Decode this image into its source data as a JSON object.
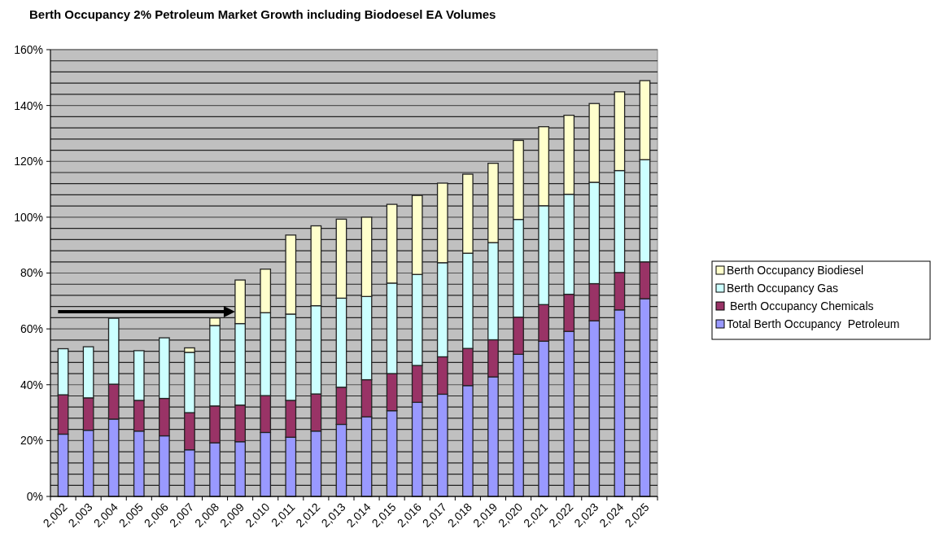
{
  "chart_data": {
    "type": "bar",
    "stacked": true,
    "title": "Berth Occupancy 2% Petroleum Market Growth including Biodoesel EA Volumes",
    "categories": [
      "2,002",
      "2,003",
      "2,004",
      "2,005",
      "2,006",
      "2,007",
      "2,008",
      "2,009",
      "2,010",
      "2,011",
      "2,012",
      "2,013",
      "2,014",
      "2,015",
      "2,016",
      "2,017",
      "2,018",
      "2,019",
      "2,020",
      "2,021",
      "2,022",
      "2,023",
      "2,024",
      "2,025"
    ],
    "series": [
      {
        "name": "Total Berth Occupancy  Petroleum",
        "color": "#9999ff",
        "values": [
          22.3,
          23.7,
          27.7,
          23.4,
          21.7,
          16.7,
          19.2,
          19.6,
          22.9,
          21.2,
          23.4,
          25.8,
          28.5,
          30.7,
          33.7,
          36.6,
          39.7,
          42.8,
          50.9,
          55.6,
          59.1,
          62.9,
          66.8,
          70.8
        ]
      },
      {
        "name": " Berth Occupancy Chemicals",
        "color": "#993366",
        "values": [
          14.1,
          11.6,
          12.5,
          11.0,
          13.4,
          13.3,
          13.2,
          13.1,
          13.2,
          13.2,
          13.3,
          13.3,
          13.3,
          13.3,
          13.2,
          13.4,
          13.3,
          13.3,
          13.3,
          13.1,
          13.3,
          13.3,
          13.4,
          13.2
        ]
      },
      {
        "name": "Berth Occupancy Gas",
        "color": "#ccffff",
        "values": [
          16.5,
          18.3,
          23.6,
          17.8,
          21.7,
          21.6,
          28.8,
          29.2,
          29.7,
          30.9,
          31.6,
          31.9,
          29.8,
          32.4,
          32.6,
          33.7,
          34.1,
          34.8,
          35.0,
          35.4,
          35.8,
          36.3,
          36.5,
          36.6
        ]
      },
      {
        "name": "Berth Occupancy Biodiesel",
        "color": "#ffffcc",
        "values": [
          0,
          0,
          0,
          0,
          0,
          1.6,
          2.7,
          15.6,
          15.6,
          28.3,
          28.6,
          28.3,
          28.4,
          28.2,
          28.3,
          28.5,
          28.3,
          28.4,
          28.3,
          28.3,
          28.3,
          28.2,
          28.2,
          28.3
        ]
      }
    ],
    "ylim": [
      0,
      160
    ],
    "yticks": [
      {
        "value": 0,
        "label": "0%"
      },
      {
        "value": 4,
        "label": null
      },
      {
        "value": 8,
        "label": null
      },
      {
        "value": 12,
        "label": null
      },
      {
        "value": 16,
        "label": null
      },
      {
        "value": 20,
        "label": "20%"
      },
      {
        "value": 24,
        "label": null
      },
      {
        "value": 28,
        "label": null
      },
      {
        "value": 32,
        "label": null
      },
      {
        "value": 36,
        "label": null
      },
      {
        "value": 40,
        "label": "40%"
      },
      {
        "value": 44,
        "label": null
      },
      {
        "value": 48,
        "label": null
      },
      {
        "value": 52,
        "label": null
      },
      {
        "value": 56,
        "label": null
      },
      {
        "value": 60,
        "label": "60%"
      },
      {
        "value": 64,
        "label": null
      },
      {
        "value": 68,
        "label": null
      },
      {
        "value": 72,
        "label": null
      },
      {
        "value": 76,
        "label": null
      },
      {
        "value": 80,
        "label": "80%"
      },
      {
        "value": 84,
        "label": null
      },
      {
        "value": 88,
        "label": null
      },
      {
        "value": 92,
        "label": null
      },
      {
        "value": 96,
        "label": null
      },
      {
        "value": 100,
        "label": "100%"
      },
      {
        "value": 104,
        "label": null
      },
      {
        "value": 108,
        "label": null
      },
      {
        "value": 112,
        "label": null
      },
      {
        "value": 116,
        "label": null
      },
      {
        "value": 120,
        "label": "120%"
      },
      {
        "value": 124,
        "label": null
      },
      {
        "value": 128,
        "label": null
      },
      {
        "value": 132,
        "label": null
      },
      {
        "value": 136,
        "label": null
      },
      {
        "value": 140,
        "label": "140%"
      },
      {
        "value": 144,
        "label": null
      },
      {
        "value": 148,
        "label": null
      },
      {
        "value": 152,
        "label": null
      },
      {
        "value": 156,
        "label": null
      },
      {
        "value": 160,
        "label": "160%"
      }
    ],
    "grid": true,
    "legend": "right"
  }
}
